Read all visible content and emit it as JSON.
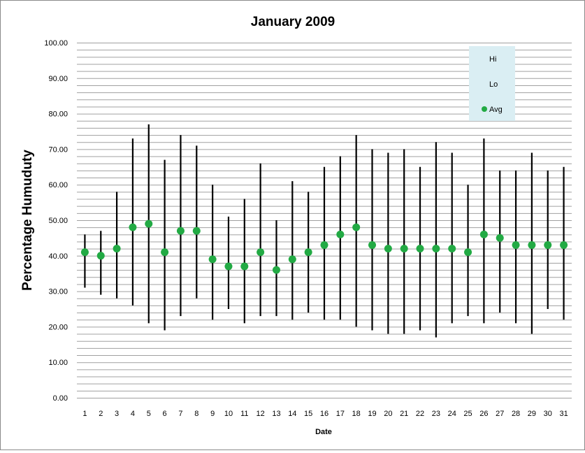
{
  "chart_data": {
    "type": "scatter",
    "title": "January 2009",
    "xlabel": "Date",
    "ylabel": "Percentage Humuduty",
    "ylim": [
      0,
      100
    ],
    "ytick_step": 2,
    "ylabel_step": 10,
    "grid": true,
    "legend_position": "top-right",
    "legend": [
      "Hi",
      "Lo",
      "Avg"
    ],
    "colors": {
      "avg_marker": "#22aa44",
      "range_line": "#000000",
      "grid": "#a0a0a0",
      "legend_bg": "#daeef3"
    },
    "x": [
      1,
      2,
      3,
      4,
      5,
      6,
      7,
      8,
      9,
      10,
      11,
      12,
      13,
      14,
      15,
      16,
      17,
      18,
      19,
      20,
      21,
      22,
      23,
      24,
      25,
      26,
      27,
      28,
      29,
      30,
      31
    ],
    "series": [
      {
        "name": "Hi",
        "values": [
          46,
          47,
          58,
          73,
          77,
          67,
          74,
          71,
          60,
          51,
          56,
          66,
          50,
          61,
          58,
          65,
          68,
          74,
          70,
          69,
          70,
          65,
          72,
          69,
          60,
          73,
          64,
          64,
          69,
          64,
          65
        ]
      },
      {
        "name": "Lo",
        "values": [
          31,
          29,
          28,
          26,
          21,
          19,
          23,
          28,
          22,
          25,
          21,
          23,
          23,
          22,
          24,
          22,
          22,
          20,
          19,
          18,
          18,
          19,
          17,
          21,
          23,
          21,
          24,
          21,
          18,
          25,
          22
        ]
      },
      {
        "name": "Avg",
        "values": [
          41,
          40,
          42,
          48,
          49,
          41,
          47,
          47,
          39,
          37,
          37,
          41,
          36,
          39,
          41,
          43,
          46,
          48,
          43,
          42,
          42,
          42,
          42,
          42,
          41,
          46,
          45,
          43,
          43,
          43,
          43
        ]
      }
    ]
  }
}
